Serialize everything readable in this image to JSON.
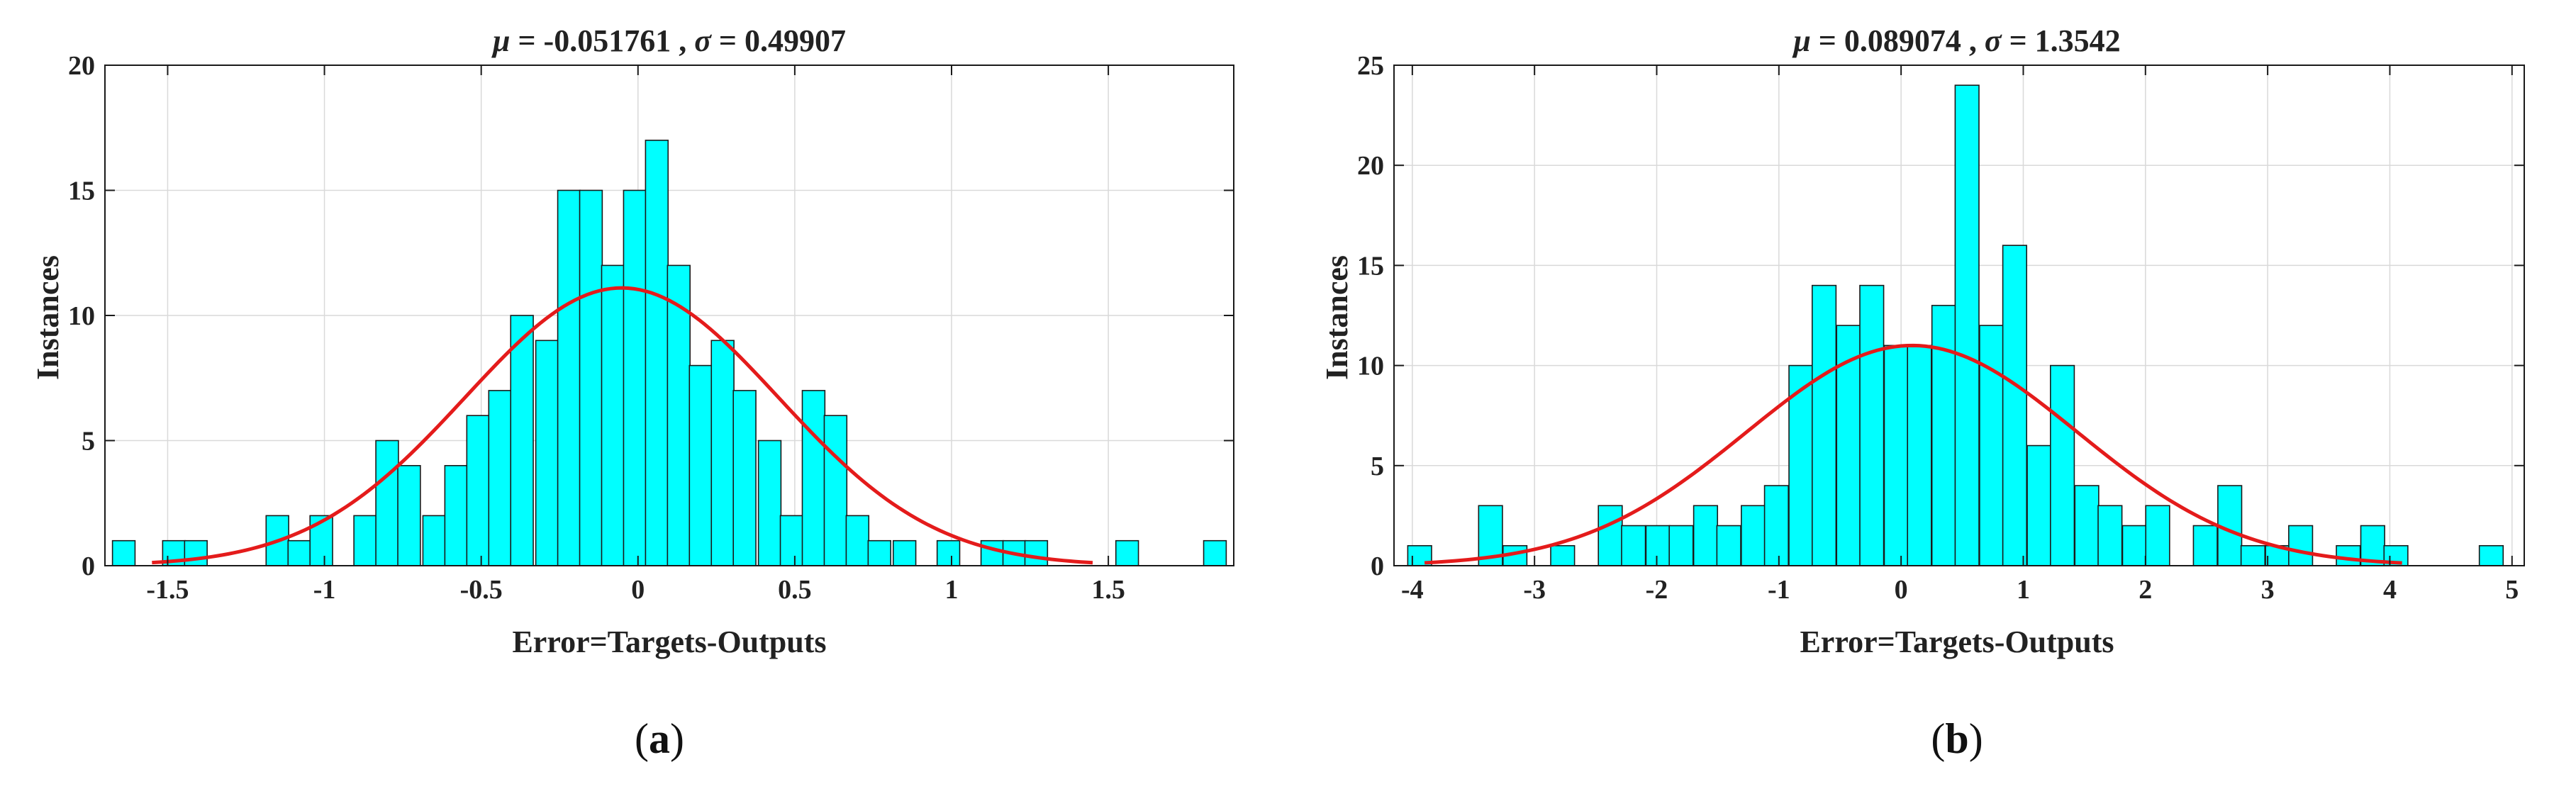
{
  "panels": [
    {
      "tag_open": "(",
      "tag_letter": "a",
      "tag_close": ")",
      "chart_data": {
        "type": "bar",
        "title_mu": "μ",
        "title_mu_rest": " = -0.051761 , ",
        "title_sigma": "σ",
        "title_sigma_rest": " = 0.49907",
        "xlabel": "Error=Targets-Outputs",
        "ylabel": "Instances",
        "xlim": [
          -1.7,
          1.9
        ],
        "ylim": [
          0,
          20
        ],
        "xticks": [
          -1.5,
          -1,
          -0.5,
          0,
          0.5,
          1,
          1.5
        ],
        "xtick_labels": [
          "-1.5",
          "-1",
          "-0.5",
          "0",
          "0.5",
          "1",
          "1.5"
        ],
        "yticks": [
          0,
          5,
          10,
          15,
          20
        ],
        "ytick_labels": [
          "0",
          "5",
          "10",
          "15",
          "20"
        ],
        "bin_width": 0.072,
        "bins": [
          {
            "x": -1.64,
            "y": 1
          },
          {
            "x": -1.48,
            "y": 1
          },
          {
            "x": -1.41,
            "y": 1
          },
          {
            "x": -1.15,
            "y": 2
          },
          {
            "x": -1.08,
            "y": 1
          },
          {
            "x": -1.01,
            "y": 2
          },
          {
            "x": -0.87,
            "y": 2
          },
          {
            "x": -0.8,
            "y": 5
          },
          {
            "x": -0.73,
            "y": 4
          },
          {
            "x": -0.65,
            "y": 2
          },
          {
            "x": -0.58,
            "y": 4
          },
          {
            "x": -0.51,
            "y": 6
          },
          {
            "x": -0.44,
            "y": 7
          },
          {
            "x": -0.37,
            "y": 10
          },
          {
            "x": -0.29,
            "y": 9
          },
          {
            "x": -0.22,
            "y": 15
          },
          {
            "x": -0.15,
            "y": 15
          },
          {
            "x": -0.08,
            "y": 12
          },
          {
            "x": -0.01,
            "y": 15
          },
          {
            "x": 0.06,
            "y": 17
          },
          {
            "x": 0.13,
            "y": 12
          },
          {
            "x": 0.2,
            "y": 8
          },
          {
            "x": 0.27,
            "y": 9
          },
          {
            "x": 0.34,
            "y": 7
          },
          {
            "x": 0.42,
            "y": 5
          },
          {
            "x": 0.49,
            "y": 2
          },
          {
            "x": 0.56,
            "y": 7
          },
          {
            "x": 0.63,
            "y": 6
          },
          {
            "x": 0.7,
            "y": 2
          },
          {
            "x": 0.77,
            "y": 1
          },
          {
            "x": 0.85,
            "y": 1
          },
          {
            "x": 0.99,
            "y": 1
          },
          {
            "x": 1.13,
            "y": 1
          },
          {
            "x": 1.2,
            "y": 1
          },
          {
            "x": 1.27,
            "y": 1
          },
          {
            "x": 1.56,
            "y": 1
          },
          {
            "x": 1.84,
            "y": 1
          }
        ],
        "fit": {
          "mu": -0.051761,
          "sigma": 0.49907,
          "peak": 11.1,
          "x_range": [
            -1.55,
            1.45
          ]
        },
        "bar_color": "#00FFFF",
        "bar_edge": "#1a1a1a",
        "fit_color": "#E41B1B",
        "grid": true
      }
    },
    {
      "tag_open": "(",
      "tag_letter": "b",
      "tag_close": ")",
      "chart_data": {
        "type": "bar",
        "title_mu": "μ",
        "title_mu_rest": " = 0.089074 , ",
        "title_sigma": "σ",
        "title_sigma_rest": " = 1.3542",
        "xlabel": "Error=Targets-Outputs",
        "ylabel": "Instances",
        "xlim": [
          -4.15,
          5.1
        ],
        "ylim": [
          0,
          25
        ],
        "xticks": [
          -4,
          -3,
          -2,
          -1,
          0,
          1,
          2,
          3,
          4,
          5
        ],
        "xtick_labels": [
          "-4",
          "-3",
          "-2",
          "-1",
          "0",
          "1",
          "2",
          "3",
          "4",
          "5"
        ],
        "yticks": [
          0,
          5,
          10,
          15,
          20,
          25
        ],
        "ytick_labels": [
          "0",
          "5",
          "10",
          "15",
          "20",
          "25"
        ],
        "bin_width": 0.195,
        "bins": [
          {
            "x": -3.94,
            "y": 1
          },
          {
            "x": -3.36,
            "y": 3
          },
          {
            "x": -3.16,
            "y": 1
          },
          {
            "x": -2.77,
            "y": 1
          },
          {
            "x": -2.38,
            "y": 3
          },
          {
            "x": -2.19,
            "y": 2
          },
          {
            "x": -1.99,
            "y": 2
          },
          {
            "x": -1.8,
            "y": 2
          },
          {
            "x": -1.6,
            "y": 3
          },
          {
            "x": -1.41,
            "y": 2
          },
          {
            "x": -1.21,
            "y": 3
          },
          {
            "x": -1.02,
            "y": 4
          },
          {
            "x": -0.82,
            "y": 10
          },
          {
            "x": -0.63,
            "y": 14
          },
          {
            "x": -0.43,
            "y": 12
          },
          {
            "x": -0.24,
            "y": 14
          },
          {
            "x": -0.04,
            "y": 11
          },
          {
            "x": 0.15,
            "y": 11
          },
          {
            "x": 0.35,
            "y": 13
          },
          {
            "x": 0.54,
            "y": 24
          },
          {
            "x": 0.74,
            "y": 12
          },
          {
            "x": 0.93,
            "y": 16
          },
          {
            "x": 1.13,
            "y": 6
          },
          {
            "x": 1.32,
            "y": 10
          },
          {
            "x": 1.52,
            "y": 4
          },
          {
            "x": 1.71,
            "y": 3
          },
          {
            "x": 1.91,
            "y": 2
          },
          {
            "x": 2.1,
            "y": 3
          },
          {
            "x": 2.49,
            "y": 2
          },
          {
            "x": 2.69,
            "y": 4
          },
          {
            "x": 2.88,
            "y": 1
          },
          {
            "x": 3.08,
            "y": 1
          },
          {
            "x": 3.27,
            "y": 2
          },
          {
            "x": 3.66,
            "y": 1
          },
          {
            "x": 3.86,
            "y": 2
          },
          {
            "x": 4.05,
            "y": 1
          },
          {
            "x": 4.83,
            "y": 1
          }
        ],
        "fit": {
          "mu": 0.089074,
          "sigma": 1.3542,
          "peak": 11.0,
          "x_range": [
            -3.9,
            4.1
          ]
        },
        "bar_color": "#00FFFF",
        "bar_edge": "#1a1a1a",
        "fit_color": "#E41B1B",
        "grid": true
      }
    }
  ]
}
